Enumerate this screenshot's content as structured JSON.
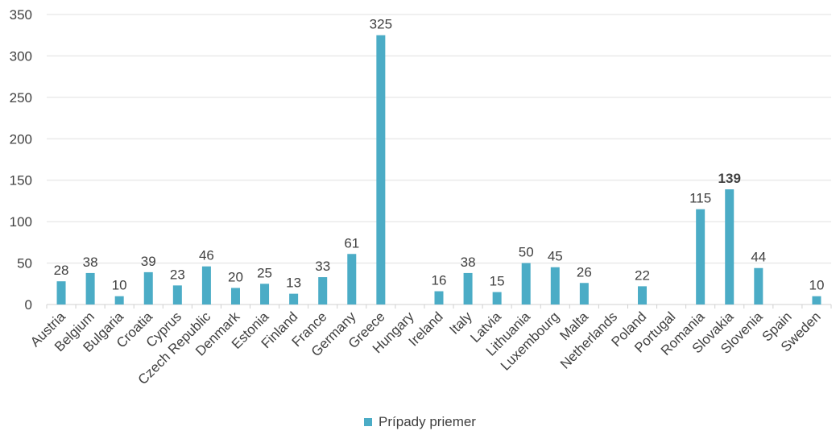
{
  "chart_data": {
    "type": "bar",
    "title": "",
    "xlabel": "",
    "ylabel": "",
    "ylim": [
      0,
      350
    ],
    "yticks": [
      0,
      50,
      100,
      150,
      200,
      250,
      300,
      350
    ],
    "grid": true,
    "legend_position": "bottom",
    "categories": [
      "Austria",
      "Belgium",
      "Bulgaria",
      "Croatia",
      "Cyprus",
      "Czech Republic",
      "Denmark",
      "Estonia",
      "Finland",
      "France",
      "Germany",
      "Greece",
      "Hungary",
      "Ireland",
      "Italy",
      "Latvia",
      "Lithuania",
      "Luxembourg",
      "Malta",
      "Netherlands",
      "Poland",
      "Portugal",
      "Romania",
      "Slovakia",
      "Slovenia",
      "Spain",
      "Sweden"
    ],
    "series": [
      {
        "name": "Prípady priemer",
        "color": "#4bacc6",
        "values": [
          28,
          38,
          10,
          39,
          23,
          46,
          20,
          25,
          13,
          33,
          61,
          325,
          null,
          16,
          38,
          15,
          50,
          45,
          26,
          null,
          22,
          null,
          115,
          139,
          44,
          null,
          10
        ]
      }
    ],
    "highlight": {
      "category": "Slovakia",
      "label_color": "#c00000"
    }
  }
}
